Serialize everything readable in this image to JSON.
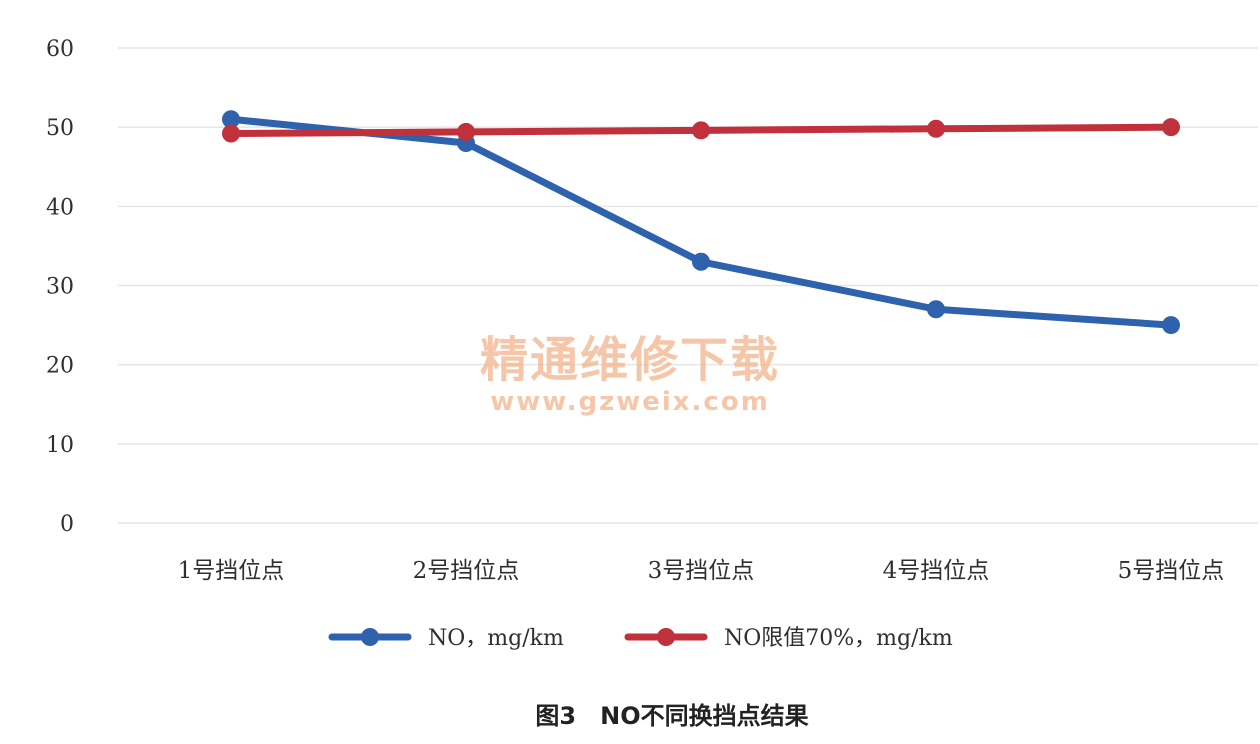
{
  "chart_data": {
    "type": "line",
    "categories": [
      "1号挡位点",
      "2号挡位点",
      "3号挡位点",
      "4号挡位点",
      "5号挡位点"
    ],
    "series": [
      {
        "name": "NO，mg/km",
        "values": [
          51,
          48,
          33,
          27,
          25
        ],
        "color": "#2e62ad"
      },
      {
        "name": "NO限值70%，mg/km",
        "values": [
          49.2,
          49.4,
          49.6,
          49.8,
          50
        ],
        "color": "#c0313c"
      }
    ],
    "ylim": [
      0,
      60
    ],
    "yticks": [
      0,
      10,
      20,
      30,
      40,
      50,
      60
    ],
    "grid": true,
    "legend": "bottom",
    "title": "图3　NO不同换挡点结果"
  },
  "watermark": {
    "line1": "精通维修下载",
    "line2": "www.gzweix.com"
  }
}
